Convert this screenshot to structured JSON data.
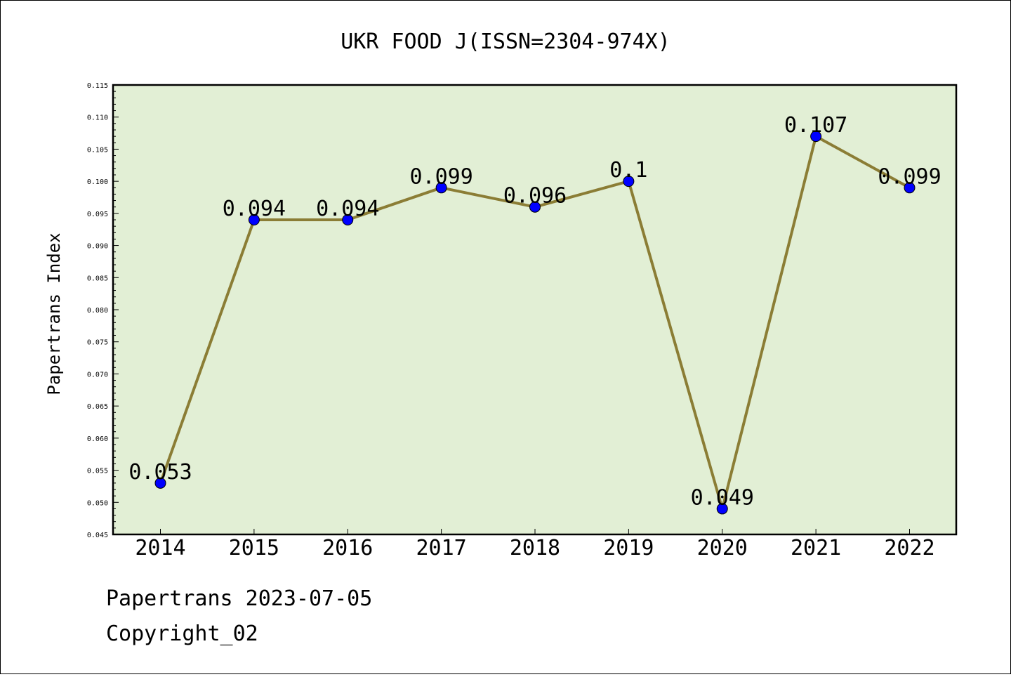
{
  "chart_data": {
    "type": "line",
    "title": "UKR FOOD J(ISSN=2304-974X)",
    "ylabel": "Papertrans Index",
    "xlabel": "",
    "categories": [
      "2014",
      "2015",
      "2016",
      "2017",
      "2018",
      "2019",
      "2020",
      "2021",
      "2022"
    ],
    "values": [
      0.053,
      0.094,
      0.094,
      0.099,
      0.096,
      0.1,
      0.049,
      0.107,
      0.099
    ],
    "data_labels": [
      "0.053",
      "0.094",
      "0.094",
      "0.099",
      "0.096",
      "0.1",
      "0.049",
      "0.107",
      "0.099"
    ],
    "ylim": [
      0.045,
      0.115
    ],
    "y_ticks": [
      "0.045",
      "0.050",
      "0.055",
      "0.060",
      "0.065",
      "0.070",
      "0.075",
      "0.080",
      "0.085",
      "0.090",
      "0.095",
      "0.100",
      "0.105",
      "0.110",
      "0.115"
    ],
    "grid": false,
    "legend": "none",
    "colors": {
      "plot_background": "#e2efd5",
      "line": "#8b7d35",
      "marker": "#0000ff"
    }
  },
  "footer": {
    "date_line": "Papertrans 2023-07-05",
    "copyright_line": "Copyright_02"
  }
}
